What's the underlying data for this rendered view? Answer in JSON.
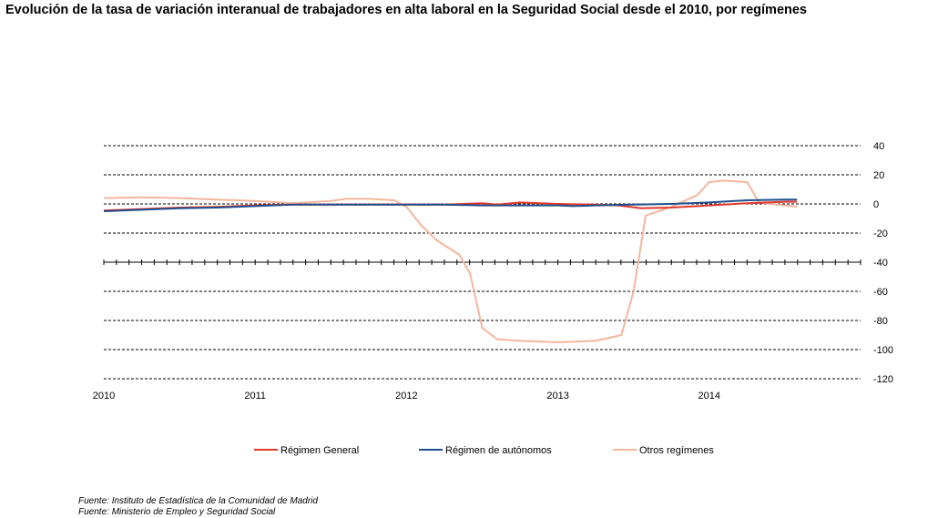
{
  "title": "Evolución de la tasa de variación interanual de trabajadores en alta laboral en la Seguridad Social desde el 2010, por regímenes",
  "sources": [
    "Fuente: Instituto de Estadística de la Comunidad de Madrid",
    "Fuente: Ministerio de Empleo y Seguridad Social"
  ],
  "chart_data": {
    "type": "line",
    "title": "Evolución de la tasa de variación interanual de trabajadores en alta laboral en la Seguridad Social desde el 2010, por regímenes",
    "xlabel": "",
    "ylabel": "",
    "x_tick_labels": [
      "2010",
      "2011",
      "2012",
      "2013",
      "2014"
    ],
    "y_ticks": [
      40,
      20,
      0,
      -20,
      -40,
      -60,
      -80,
      -100,
      -120
    ],
    "y_tick_labels": [
      "40",
      "20",
      "0",
      "-20",
      "-40",
      "-60",
      "-80",
      "-100",
      "-120"
    ],
    "ylim": [
      -120,
      40
    ],
    "xlim": [
      2010,
      2015
    ],
    "grid": "horizontal dashed",
    "legend_position": "bottom",
    "series": [
      {
        "name": "Régimen General",
        "color": "#e3382b",
        "points": [
          [
            2010.0,
            -4.5
          ],
          [
            2010.25,
            -3.5
          ],
          [
            2010.5,
            -2.5
          ],
          [
            2010.75,
            -2
          ],
          [
            2011.0,
            -1
          ],
          [
            2011.25,
            -0.5
          ],
          [
            2011.5,
            -0.5
          ],
          [
            2011.75,
            -0.5
          ],
          [
            2012.0,
            -0.5
          ],
          [
            2012.25,
            -0.5
          ],
          [
            2012.5,
            0.5
          ],
          [
            2012.6,
            -0.5
          ],
          [
            2012.75,
            1
          ],
          [
            2013.0,
            0
          ],
          [
            2013.25,
            -0.5
          ],
          [
            2013.4,
            -1
          ],
          [
            2013.55,
            -3
          ],
          [
            2013.75,
            -2.5
          ],
          [
            2014.0,
            -1
          ],
          [
            2014.25,
            0.5
          ],
          [
            2014.5,
            1.5
          ],
          [
            2014.58,
            1.5
          ]
        ]
      },
      {
        "name": "Régimen de autónomos",
        "color": "#1f4e8c",
        "points": [
          [
            2010.0,
            -5
          ],
          [
            2010.25,
            -4
          ],
          [
            2010.5,
            -3
          ],
          [
            2010.75,
            -2.5
          ],
          [
            2011.0,
            -1.5
          ],
          [
            2011.25,
            -0.5
          ],
          [
            2011.5,
            -0.5
          ],
          [
            2011.75,
            -0.5
          ],
          [
            2012.0,
            -0.5
          ],
          [
            2012.25,
            -0.5
          ],
          [
            2012.5,
            -1
          ],
          [
            2012.75,
            -1
          ],
          [
            2013.0,
            -1
          ],
          [
            2013.1,
            -1.5
          ],
          [
            2013.25,
            -1
          ],
          [
            2013.5,
            -0.5
          ],
          [
            2013.75,
            0
          ],
          [
            2014.0,
            1
          ],
          [
            2014.25,
            2.5
          ],
          [
            2014.5,
            3
          ],
          [
            2014.58,
            3
          ]
        ]
      },
      {
        "name": "Otros regímenes",
        "color": "#f5b59e",
        "points": [
          [
            2010.0,
            4
          ],
          [
            2010.25,
            4.5
          ],
          [
            2010.5,
            4
          ],
          [
            2010.75,
            3
          ],
          [
            2011.0,
            2
          ],
          [
            2011.25,
            0.5
          ],
          [
            2011.5,
            2
          ],
          [
            2011.6,
            3.5
          ],
          [
            2011.75,
            3.5
          ],
          [
            2011.92,
            2.5
          ],
          [
            2012.0,
            -2
          ],
          [
            2012.1,
            -15
          ],
          [
            2012.2,
            -25
          ],
          [
            2012.35,
            -35
          ],
          [
            2012.42,
            -48
          ],
          [
            2012.5,
            -85
          ],
          [
            2012.6,
            -93
          ],
          [
            2012.75,
            -94
          ],
          [
            2013.0,
            -95
          ],
          [
            2013.25,
            -94
          ],
          [
            2013.42,
            -90
          ],
          [
            2013.5,
            -60
          ],
          [
            2013.58,
            -8
          ],
          [
            2013.75,
            -2
          ],
          [
            2013.92,
            6
          ],
          [
            2014.0,
            15
          ],
          [
            2014.1,
            16
          ],
          [
            2014.25,
            15
          ],
          [
            2014.33,
            1
          ],
          [
            2014.5,
            -1
          ],
          [
            2014.58,
            -2
          ]
        ]
      }
    ]
  }
}
